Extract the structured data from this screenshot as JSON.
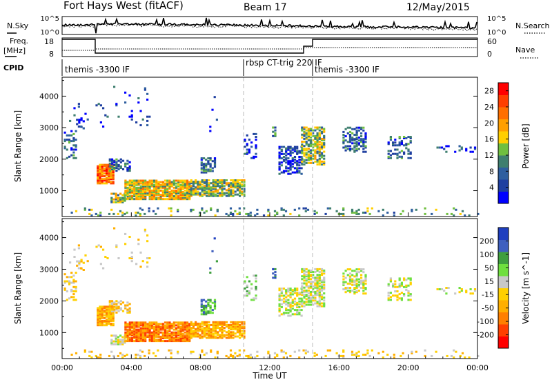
{
  "header": {
    "station": "Fort Hays West (fitACF)",
    "beam": "Beam 17",
    "date": "12/May/2015"
  },
  "side_labels": {
    "nsky": "N.Sky",
    "nsearch": "N.Search",
    "freq": "Freq.",
    "freq_unit": "[MHz]",
    "nave": "Nave",
    "cpid": "CPID"
  },
  "colors": {
    "power_scale": [
      "#0000ff",
      "#1f3fa0",
      "#2f5f9f",
      "#3f7f6f",
      "#6fbf3f",
      "#ffcf00",
      "#ff9f00",
      "#ff6f00",
      "#ff3f00",
      "#ff0000"
    ],
    "velocity_scale": [
      "#ff0000",
      "#ff3f00",
      "#ff7f00",
      "#ffaf00",
      "#ffd000",
      "#c8c8c8",
      "#6fdf3f",
      "#3f9f3f",
      "#3f5fbf",
      "#1f3fbf"
    ]
  },
  "chart_data": [
    {
      "type": "line",
      "name": "noise",
      "y_ticks_left": [
        "10^5",
        "10^0"
      ],
      "y_ticks_right": [
        "10^5",
        "10^0"
      ]
    },
    {
      "type": "line",
      "name": "freq_nave",
      "y_ticks_left": [
        "18",
        "8"
      ],
      "y_ticks_right": [
        "60",
        "0"
      ]
    },
    {
      "type": "text",
      "name": "cpid",
      "segments": [
        {
          "x": 0.0,
          "label": "themis -3300 IF"
        },
        {
          "x": 10.4,
          "label": "rbsp CT-trig 220 IF"
        },
        {
          "x": 14.1,
          "label": "themis -3300 IF"
        }
      ]
    },
    {
      "type": "heatmap",
      "name": "power",
      "xlabel": "",
      "ylabel": "Slant Range [km]",
      "ylim": [
        180,
        4600
      ],
      "y_ticks": [
        "1000",
        "2000",
        "3000",
        "4000"
      ],
      "colorbar_label": "Power [dB]",
      "colorbar_ticks": [
        "4",
        "8",
        "12",
        "16",
        "20",
        "24",
        "28"
      ],
      "colorbar_range": [
        0,
        30
      ]
    },
    {
      "type": "heatmap",
      "name": "velocity",
      "xlabel": "Time UT",
      "ylabel": "Slant Range [km]",
      "ylim": [
        180,
        4600
      ],
      "y_ticks": [
        "1000",
        "2000",
        "3000",
        "4000"
      ],
      "x_ticks": [
        "00:00",
        "04:00",
        "08:00",
        "12:00",
        "16:00",
        "20:00",
        "00:00"
      ],
      "xlim": [
        0,
        24
      ],
      "colorbar_label": "Velocity [m s^-1]",
      "colorbar_ticks": [
        "200",
        "100",
        "50",
        "15",
        "-15",
        "-50",
        "-100",
        "-200"
      ]
    }
  ]
}
